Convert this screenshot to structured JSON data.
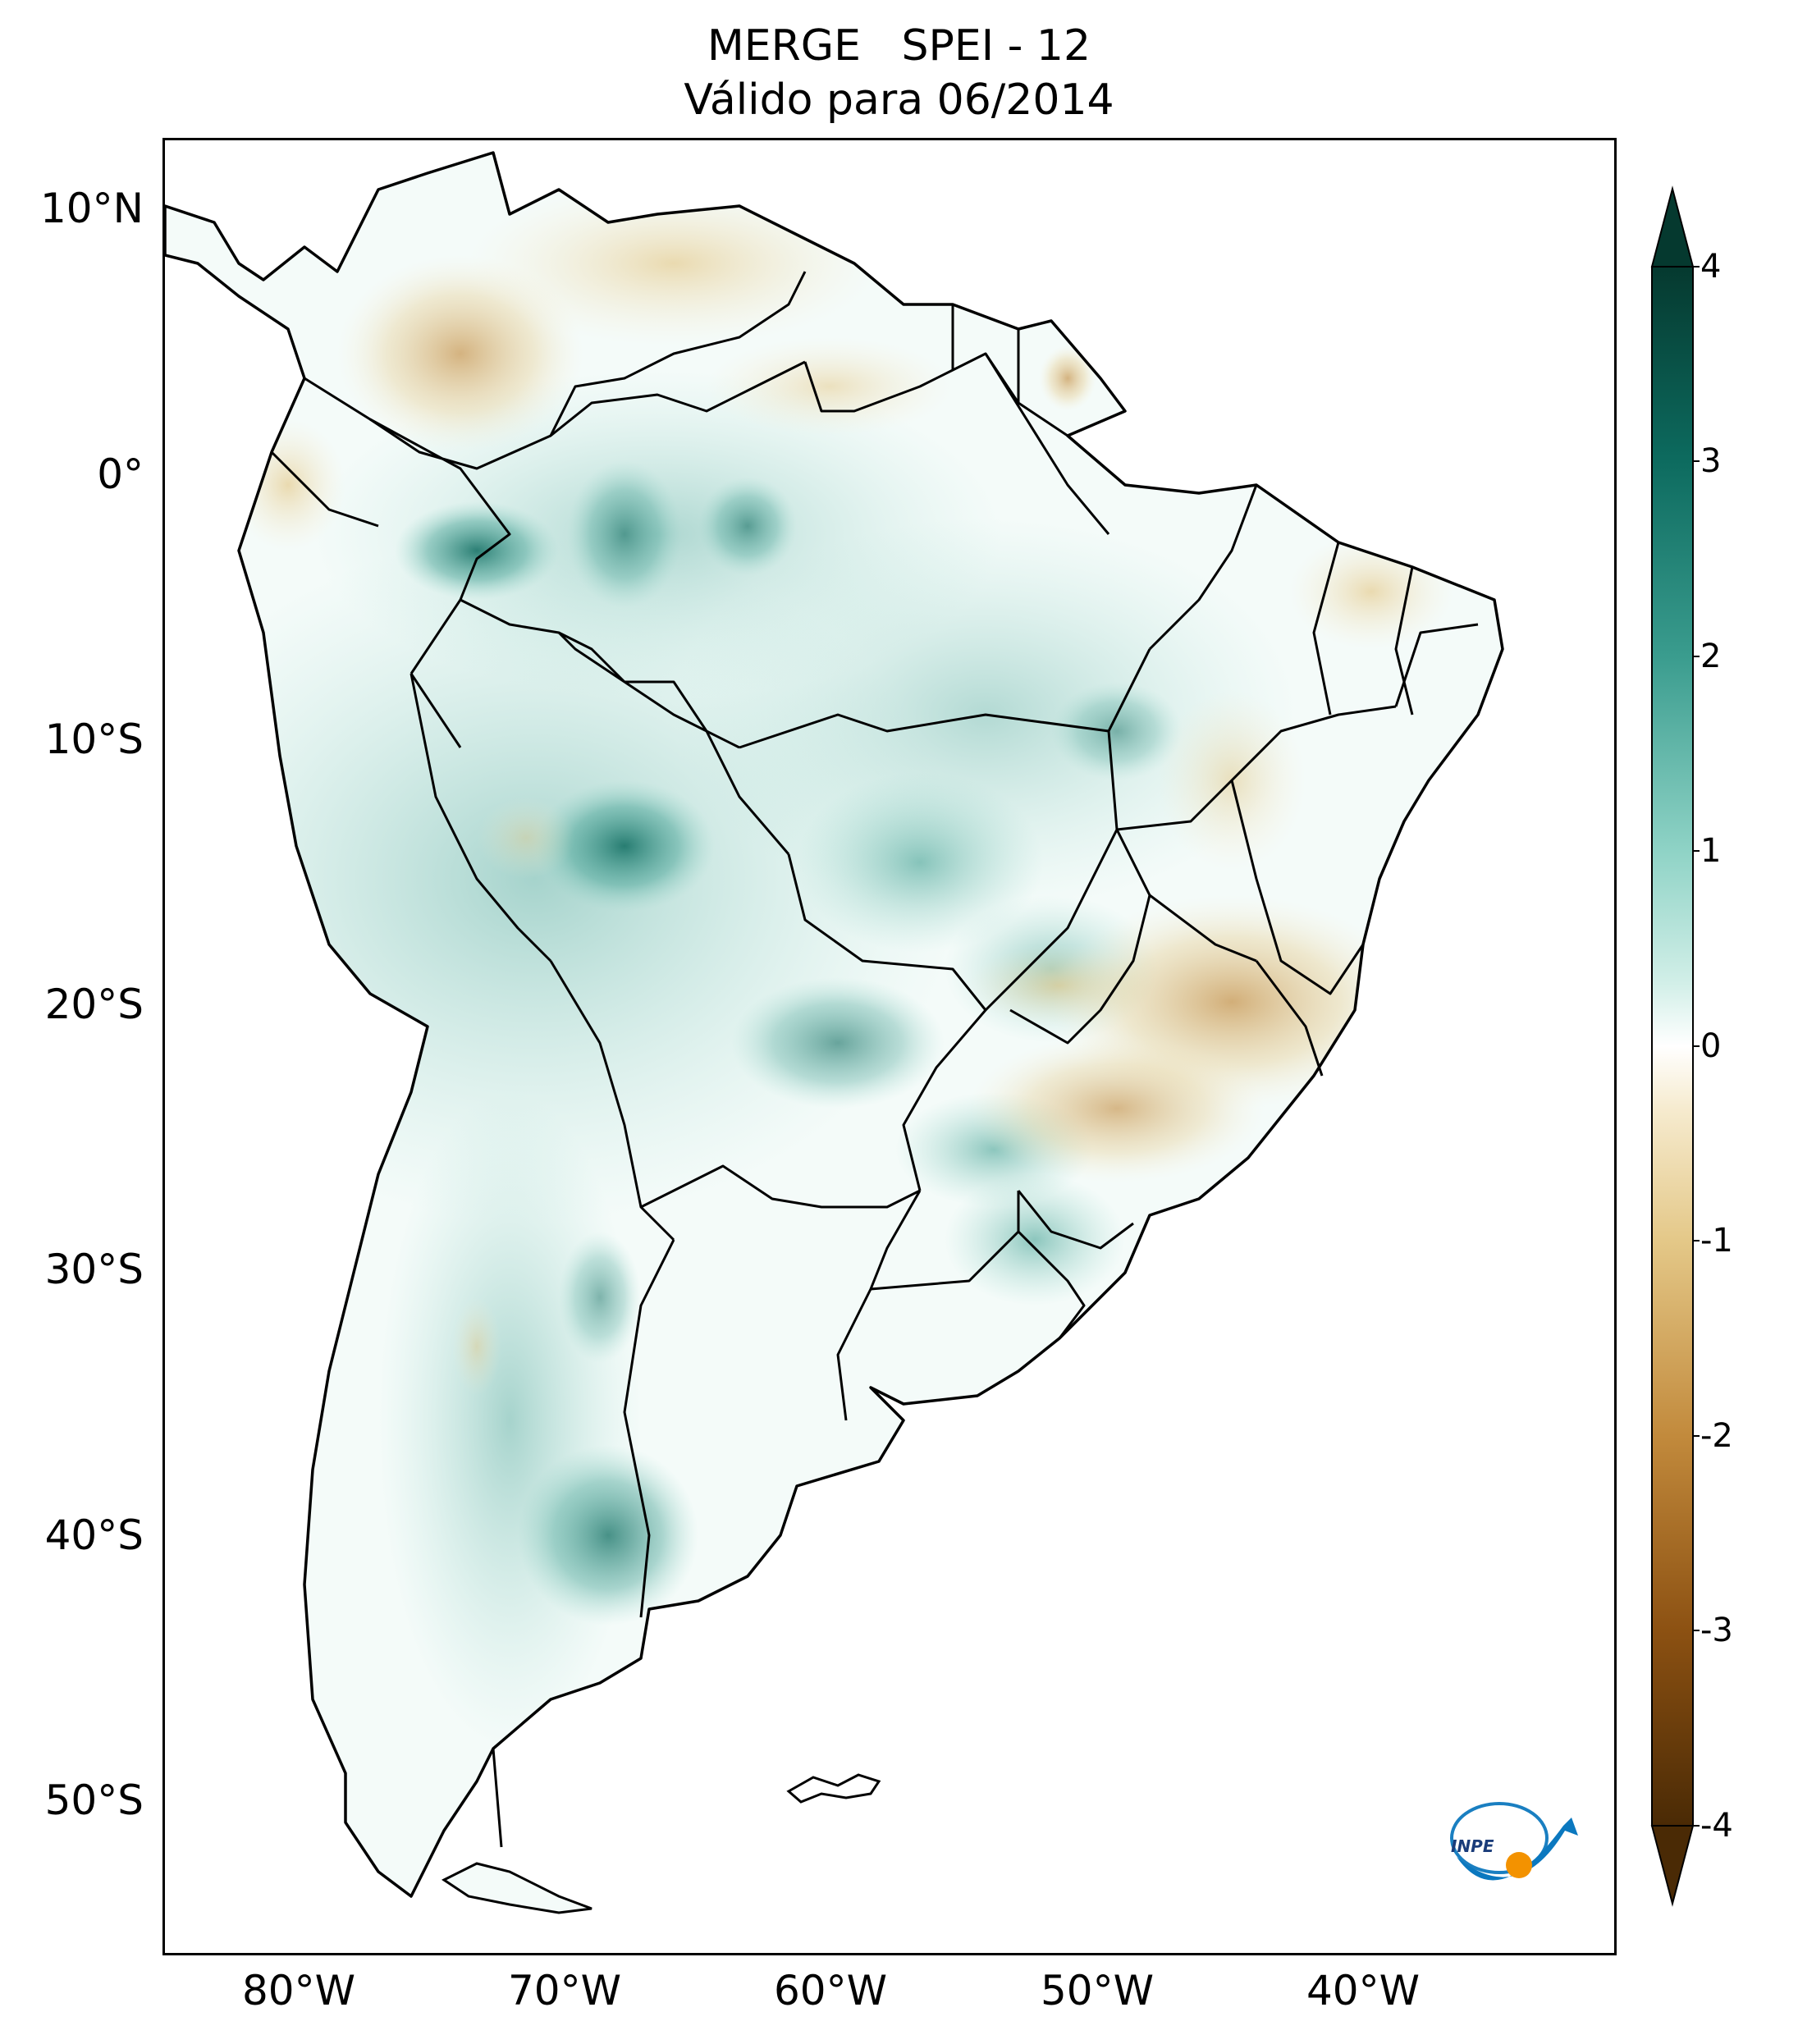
{
  "title": {
    "line1": "MERGE   SPEI - 12",
    "line2": "Válido para 06/2014"
  },
  "axes": {
    "lat_ticks": [
      "10°N",
      "0°",
      "10°S",
      "20°S",
      "30°S",
      "40°S",
      "50°S"
    ],
    "lon_ticks": [
      "80°W",
      "70°W",
      "60°W",
      "50°W",
      "40°W"
    ]
  },
  "colorbar": {
    "ticks": [
      "4",
      "3",
      "2",
      "1",
      "0",
      "-1",
      "-2",
      "-3",
      "-4"
    ],
    "range": [
      -4,
      4
    ],
    "colormap": "BrBG",
    "extend": "both",
    "colors": [
      "#4a2a05",
      "#8c5112",
      "#c28a3c",
      "#e4c888",
      "#f6ebcf",
      "#ffffff",
      "#d2efe8",
      "#8fd3c6",
      "#3a9c8e",
      "#0d6b5f",
      "#05392f"
    ]
  },
  "logo": {
    "text": "INPE"
  }
}
